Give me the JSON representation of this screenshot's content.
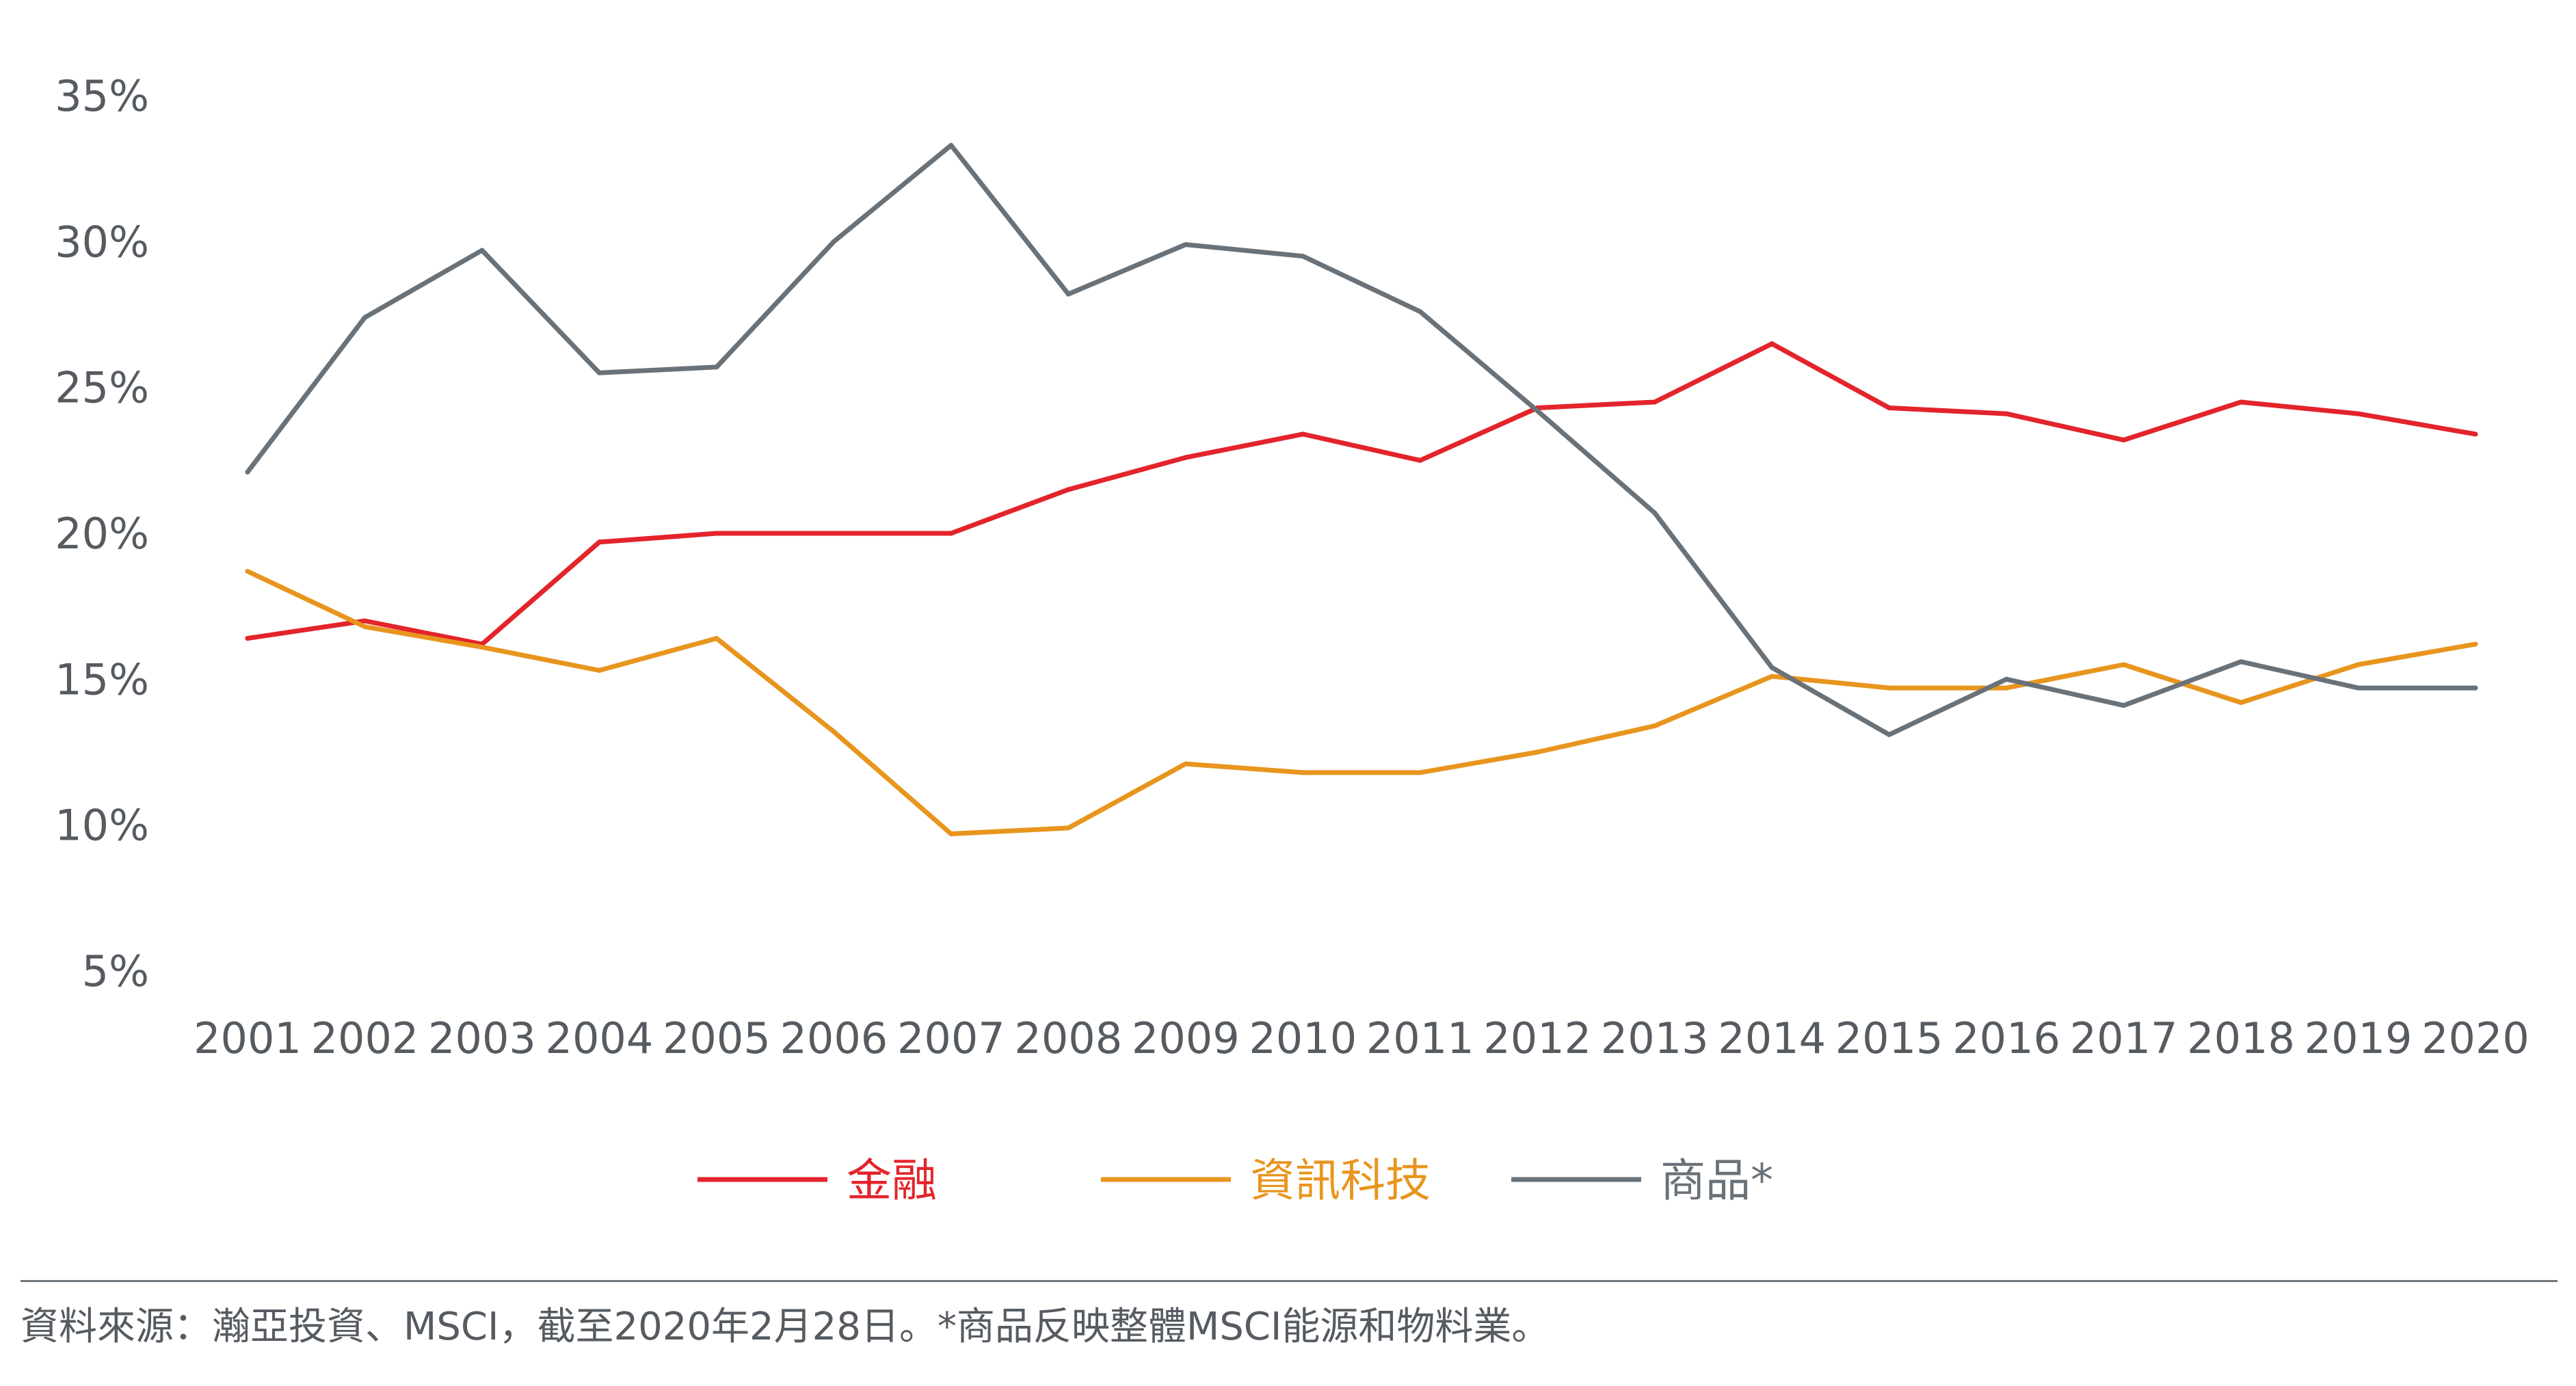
{
  "chart_data": {
    "type": "line",
    "title": "",
    "xlabel": "",
    "ylabel": "",
    "x": [
      "2001",
      "2002",
      "2003",
      "2004",
      "2005",
      "2006",
      "2007",
      "2008",
      "2009",
      "2010",
      "2011",
      "2012",
      "2013",
      "2014",
      "2015",
      "2016",
      "2017",
      "2018",
      "2019",
      "2020"
    ],
    "y_ticks": [
      "35%",
      "30%",
      "25%",
      "20%",
      "15%",
      "10%",
      "5%"
    ],
    "y_tick_values": [
      35,
      30,
      25,
      20,
      15,
      10,
      5
    ],
    "ylim": [
      5,
      35
    ],
    "grid": false,
    "legend_position": "bottom-center",
    "series": [
      {
        "name": "金融",
        "color": "#e3242b",
        "values": [
          16.4,
          17.0,
          16.2,
          19.7,
          20.0,
          20.0,
          20.0,
          21.5,
          22.6,
          23.4,
          22.5,
          24.3,
          24.5,
          26.5,
          24.3,
          24.1,
          23.2,
          24.5,
          24.1,
          23.4
        ]
      },
      {
        "name": "資訊科技",
        "color": "#e8951e",
        "values": [
          18.7,
          16.8,
          16.1,
          15.3,
          16.4,
          13.2,
          9.7,
          9.9,
          12.1,
          11.8,
          11.8,
          12.5,
          13.4,
          15.1,
          14.7,
          14.7,
          15.5,
          14.2,
          15.5,
          16.2
        ]
      },
      {
        "name": "商品*",
        "color": "#6a7279",
        "values": [
          22.1,
          27.4,
          29.7,
          25.5,
          25.7,
          30.0,
          33.3,
          28.2,
          29.9,
          29.5,
          27.6,
          24.2,
          20.7,
          15.4,
          13.1,
          15.0,
          14.1,
          15.6,
          14.7,
          14.7
        ]
      }
    ]
  },
  "footer": {
    "source": "資料來源：瀚亞投資、MSCI，截至2020年2月28日。*商品反映整體MSCI能源和物料業。"
  }
}
